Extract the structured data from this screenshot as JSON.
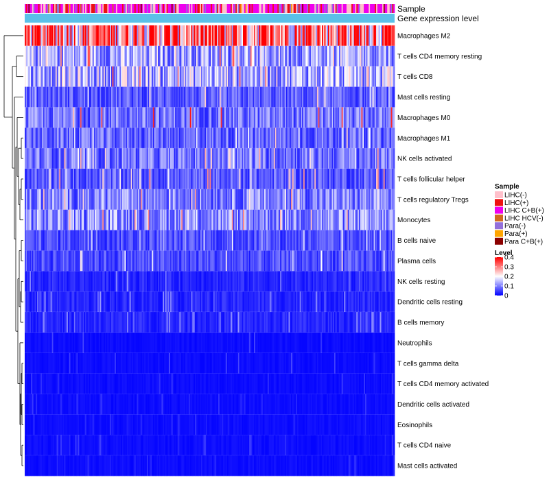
{
  "chart_data": {
    "type": "heatmap",
    "annotation_rows": [
      "Sample",
      "Gene expression level"
    ],
    "row_labels": [
      "Macrophages M2",
      "T cells CD4 memory resting",
      "T cells CD8",
      "Mast cells resting",
      "Macrophages M0",
      "Macrophages M1",
      "NK cells activated",
      "T cells follicular helper",
      "T cells regulatory  Tregs",
      "Monocytes",
      "B cells naive",
      "Plasma cells",
      "NK cells resting",
      "Dendritic cells resting",
      "B cells memory",
      "Neutrophils",
      "T cells gamma delta",
      "T cells CD4 memory activated",
      "Dendritic cells activated",
      "Eosinophils",
      "T cells CD4 naive",
      "Mast cells activated"
    ],
    "row_mean_level": [
      0.32,
      0.13,
      0.14,
      0.07,
      0.09,
      0.08,
      0.09,
      0.07,
      0.1,
      0.11,
      0.06,
      0.06,
      0.03,
      0.03,
      0.03,
      0.01,
      0.01,
      0.01,
      0.01,
      0.01,
      0.01,
      0.01
    ],
    "row_max_level": [
      0.4,
      0.35,
      0.35,
      0.25,
      0.4,
      0.25,
      0.3,
      0.3,
      0.3,
      0.3,
      0.2,
      0.25,
      0.12,
      0.12,
      0.12,
      0.06,
      0.06,
      0.05,
      0.05,
      0.04,
      0.05,
      0.04
    ],
    "legend_sample": {
      "title": "Sample",
      "items": [
        {
          "label": "LIHC(-)",
          "color": "#FFC0CB"
        },
        {
          "label": "LIHC(+)",
          "color": "#EE1111"
        },
        {
          "label": "LIHC C+B(+)",
          "color": "#EE00EE"
        },
        {
          "label": "LIHC HCV(-)",
          "color": "#D2691E"
        },
        {
          "label": "Para(-)",
          "color": "#9370DB"
        },
        {
          "label": "Para(+)",
          "color": "#FFA500"
        },
        {
          "label": "Para C+B(+)",
          "color": "#8B0000"
        }
      ]
    },
    "legend_level": {
      "title": "Level",
      "ticks": [
        "0.4",
        "0.3",
        "0.2",
        "0.1",
        "0"
      ],
      "tick_values": [
        0.4,
        0.3,
        0.2,
        0.1,
        0
      ],
      "range": [
        0,
        0.4
      ],
      "colors": {
        "low": "#0000FF",
        "mid": "#FFFFFF",
        "high": "#FF0000"
      }
    },
    "gene_expression_level_color": "#5BC0E8"
  }
}
